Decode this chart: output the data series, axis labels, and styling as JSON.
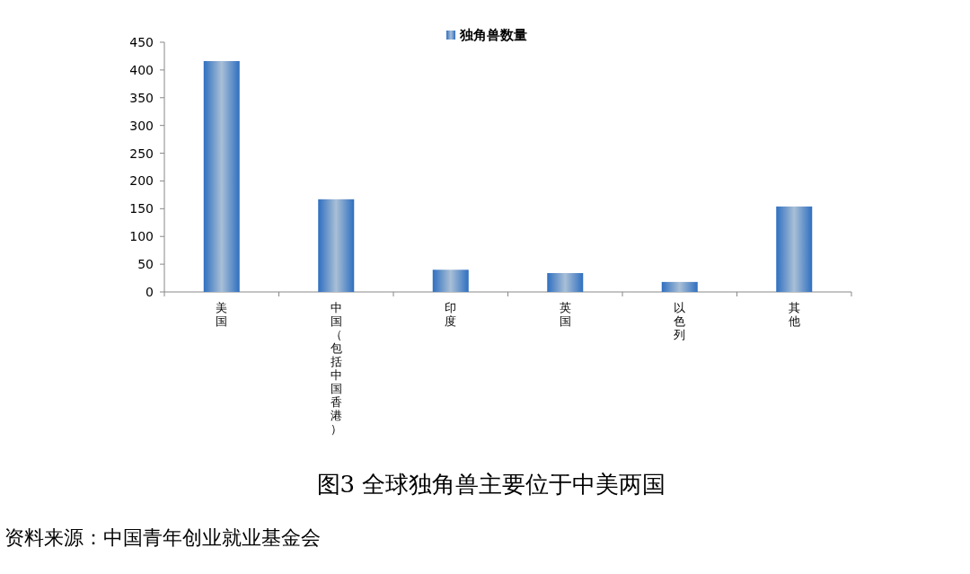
{
  "chart_data": {
    "type": "bar",
    "title": "图3 全球独角兽主要位于中美两国",
    "categories": [
      "美国",
      "中国（包括中国香港）",
      "印度",
      "英国",
      "以色列",
      "其他"
    ],
    "series": [
      {
        "name": "独角兽数量",
        "color": "#2f6fc0",
        "values": [
          416,
          167,
          40,
          34,
          18,
          154
        ]
      }
    ],
    "ylim": [
      0,
      450
    ],
    "yticks": [
      0,
      50,
      100,
      150,
      200,
      250,
      300,
      350,
      400,
      450
    ],
    "legend": "top",
    "grid": false,
    "annotations": [
      "资料来源：中国青年创业就业基金会"
    ]
  }
}
